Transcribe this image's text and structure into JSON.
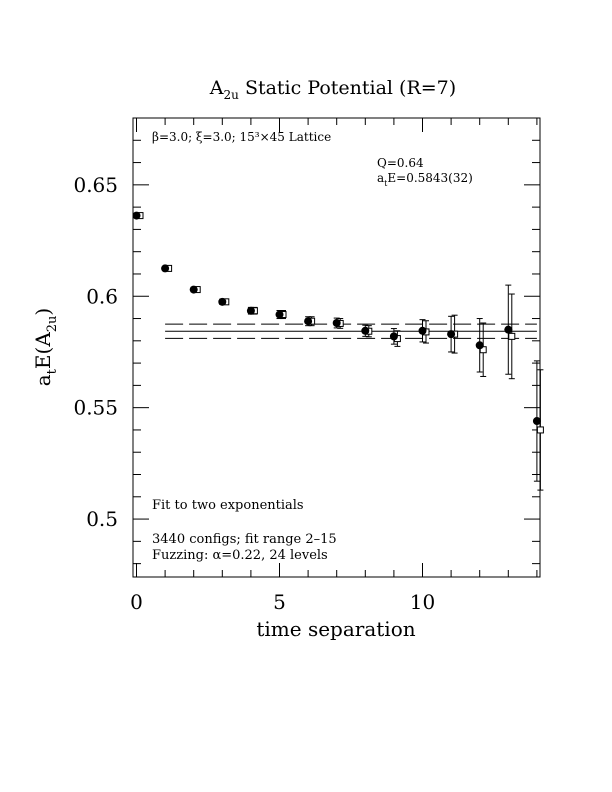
{
  "chart_data": {
    "type": "scatter",
    "title_main": "A",
    "title_sub": "2u",
    "title_rest": " Static Potential (R=7)",
    "ylabel": "aₜE(A₂ᵤ)",
    "ylabel_a": "a",
    "ylabel_t": "t",
    "ylabel_E": "E(A",
    "ylabel_2u": "2u",
    "ylabel_close": ")",
    "xlabel": "time separation",
    "xlim": [
      0,
      14
    ],
    "ylim": [
      0.474,
      0.68
    ],
    "x_ticks": [
      0,
      5,
      10
    ],
    "y_ticks": [
      0.5,
      0.55,
      0.6,
      0.65
    ],
    "x_tick_labels": [
      "0",
      "5",
      "10"
    ],
    "y_tick_labels": [
      "0.5",
      "0.55",
      "0.6",
      "0.65"
    ],
    "lattice_info": "β=3.0; ξ=3.0; 15³×45 Lattice",
    "fit_q": "Q=0.64",
    "fit_energy_a": "a",
    "fit_energy_t": "t",
    "fit_energy_rest": "E=0.5843(32)",
    "fit_type": "Fit to two exponentials",
    "configs": "3440 configs; fit range 2–15",
    "fuzzing": "Fuzzing: α=0.22, 24 levels",
    "fit_value": 0.5843,
    "fit_error": 0.0032,
    "fit_line_x_range": [
      1,
      14
    ],
    "points": [
      {
        "x": 0,
        "y": 0.6362,
        "err": 0.0006
      },
      {
        "x": 1,
        "y": 0.6125,
        "err": 0.0008
      },
      {
        "x": 2,
        "y": 0.603,
        "err": 0.001
      },
      {
        "x": 3,
        "y": 0.5975,
        "err": 0.0012
      },
      {
        "x": 4,
        "y": 0.5935,
        "err": 0.0015
      },
      {
        "x": 5,
        "y": 0.5918,
        "err": 0.0018
      },
      {
        "x": 6,
        "y": 0.5888,
        "err": 0.002
      },
      {
        "x": 7,
        "y": 0.588,
        "err": 0.0022
      },
      {
        "x": 8,
        "y": 0.5845,
        "err": 0.0025
      },
      {
        "x": 9,
        "y": 0.582,
        "err": 0.0035
      },
      {
        "x": 10,
        "y": 0.5845,
        "err": 0.005
      },
      {
        "x": 11,
        "y": 0.583,
        "err": 0.008
      },
      {
        "x": 12,
        "y": 0.578,
        "err": 0.012
      },
      {
        "x": 13,
        "y": 0.585,
        "err": 0.02
      },
      {
        "x": 14,
        "y": 0.544,
        "err": 0.027
      }
    ],
    "open_points": [
      {
        "x": 0,
        "y": 0.6362,
        "err": 0.0006
      },
      {
        "x": 1,
        "y": 0.6125,
        "err": 0.0008
      },
      {
        "x": 2,
        "y": 0.603,
        "err": 0.001
      },
      {
        "x": 3,
        "y": 0.5975,
        "err": 0.0012
      },
      {
        "x": 4,
        "y": 0.5935,
        "err": 0.0015
      },
      {
        "x": 5,
        "y": 0.5918,
        "err": 0.0018
      },
      {
        "x": 6,
        "y": 0.5888,
        "err": 0.002
      },
      {
        "x": 7,
        "y": 0.5878,
        "err": 0.0022
      },
      {
        "x": 8,
        "y": 0.5843,
        "err": 0.0025
      },
      {
        "x": 9,
        "y": 0.581,
        "err": 0.0035
      },
      {
        "x": 10,
        "y": 0.584,
        "err": 0.005
      },
      {
        "x": 11,
        "y": 0.583,
        "err": 0.0085
      },
      {
        "x": 12,
        "y": 0.576,
        "err": 0.012
      },
      {
        "x": 13,
        "y": 0.582,
        "err": 0.019
      },
      {
        "x": 14,
        "y": 0.54,
        "err": 0.027
      }
    ]
  }
}
